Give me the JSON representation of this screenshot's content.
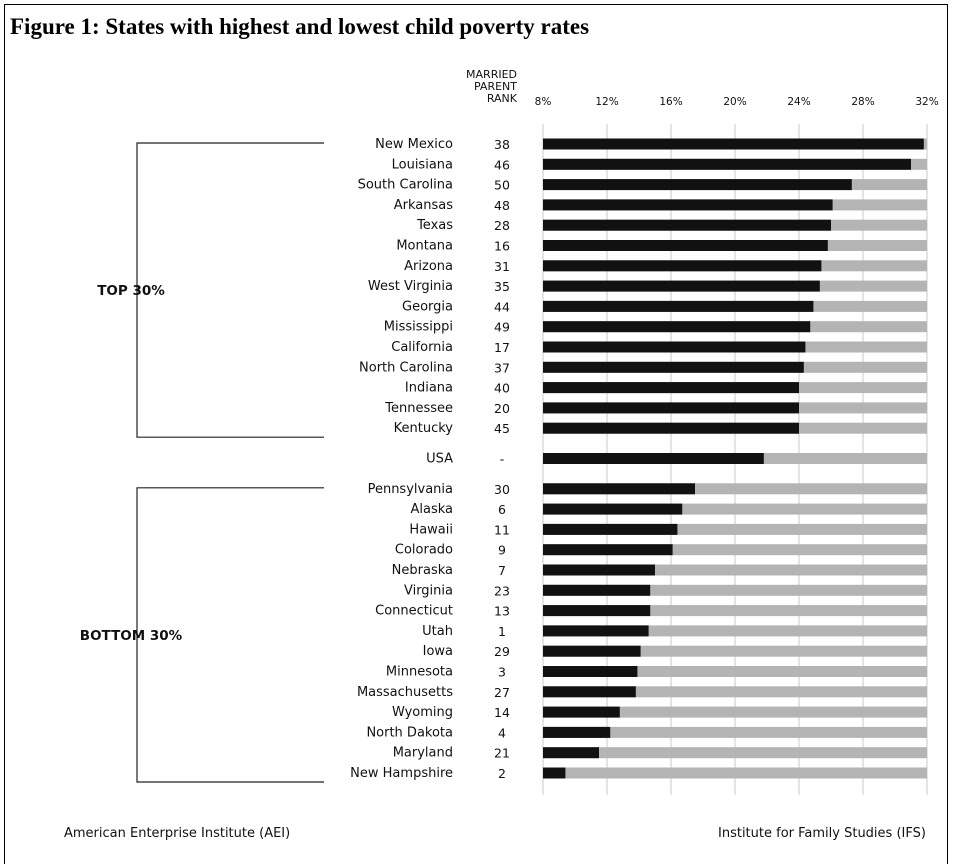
{
  "figure": {
    "title": "Figure 1: States with highest and lowest child poverty rates",
    "footer_left": "American Enterprise Institute (AEI)",
    "footer_right": "Institute for Family Studies (IFS)"
  },
  "chart_data": {
    "type": "bar",
    "orientation": "horizontal",
    "rank_header": [
      "MARRIED",
      "PARENT",
      "RANK"
    ],
    "x_ticks": [
      "8%",
      "12%",
      "16%",
      "20%",
      "24%",
      "28%",
      "32%"
    ],
    "xlim": [
      8,
      32
    ],
    "grid": true,
    "groups": [
      {
        "label": "TOP 30%",
        "rows": [
          {
            "state": "New Mexico",
            "rank": "38",
            "value": 31.8
          },
          {
            "state": "Louisiana",
            "rank": "46",
            "value": 31.0
          },
          {
            "state": "South Carolina",
            "rank": "50",
            "value": 27.3
          },
          {
            "state": "Arkansas",
            "rank": "48",
            "value": 26.1
          },
          {
            "state": "Texas",
            "rank": "28",
            "value": 26.0
          },
          {
            "state": "Montana",
            "rank": "16",
            "value": 25.8
          },
          {
            "state": "Arizona",
            "rank": "31",
            "value": 25.4
          },
          {
            "state": "West Virginia",
            "rank": "35",
            "value": 25.3
          },
          {
            "state": "Georgia",
            "rank": "44",
            "value": 24.9
          },
          {
            "state": "Mississippi",
            "rank": "49",
            "value": 24.7
          },
          {
            "state": "California",
            "rank": "17",
            "value": 24.4
          },
          {
            "state": "North Carolina",
            "rank": "37",
            "value": 24.3
          },
          {
            "state": "Indiana",
            "rank": "40",
            "value": 24.0
          },
          {
            "state": "Tennessee",
            "rank": "20",
            "value": 24.0
          },
          {
            "state": "Kentucky",
            "rank": "45",
            "value": 24.0
          }
        ]
      },
      {
        "label": "",
        "rows": [
          {
            "state": "USA",
            "rank": "-",
            "value": 21.8
          }
        ]
      },
      {
        "label": "BOTTOM 30%",
        "rows": [
          {
            "state": "Pennsylvania",
            "rank": "30",
            "value": 17.5
          },
          {
            "state": "Alaska",
            "rank": "6",
            "value": 16.7
          },
          {
            "state": "Hawaii",
            "rank": "11",
            "value": 16.4
          },
          {
            "state": "Colorado",
            "rank": "9",
            "value": 16.1
          },
          {
            "state": "Nebraska",
            "rank": "7",
            "value": 15.0
          },
          {
            "state": "Virginia",
            "rank": "23",
            "value": 14.7
          },
          {
            "state": "Connecticut",
            "rank": "13",
            "value": 14.7
          },
          {
            "state": "Utah",
            "rank": "1",
            "value": 14.6
          },
          {
            "state": "Iowa",
            "rank": "29",
            "value": 14.1
          },
          {
            "state": "Minnesota",
            "rank": "3",
            "value": 13.9
          },
          {
            "state": "Massachusetts",
            "rank": "27",
            "value": 13.8
          },
          {
            "state": "Wyoming",
            "rank": "14",
            "value": 12.8
          },
          {
            "state": "North Dakota",
            "rank": "4",
            "value": 12.2
          },
          {
            "state": "Maryland",
            "rank": "21",
            "value": 11.5
          },
          {
            "state": "New Hampshire",
            "rank": "2",
            "value": 9.4
          }
        ]
      }
    ]
  },
  "colors": {
    "bar": "#111111",
    "track": "#b4b4b4",
    "grid": "#c8c8c8",
    "text": "#111111"
  }
}
